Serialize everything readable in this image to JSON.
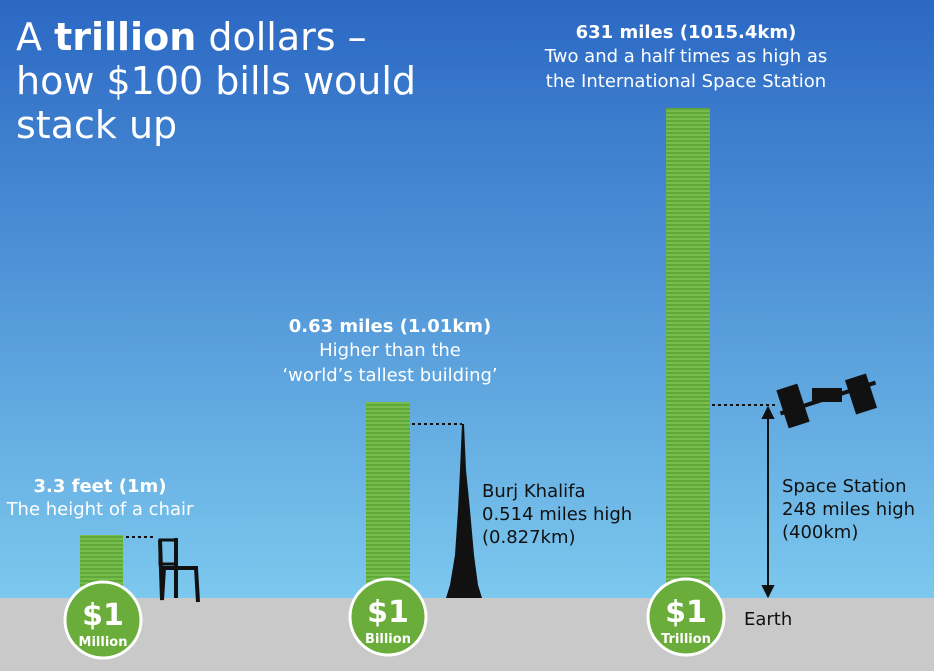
{
  "title": {
    "lines": [
      [
        "A ",
        "trillion",
        " dollars –"
      ],
      [
        "how $100 bills would"
      ],
      [
        "stack up"
      ]
    ]
  },
  "stacks": [
    {
      "height": "3.3 feet (1m)",
      "caption": [
        "The height of a chair"
      ],
      "amount": "$1",
      "unit": "Million"
    },
    {
      "height": "0.63 miles (1.01km)",
      "caption": [
        "Higher than the",
        "‘world’s tallest building’"
      ],
      "amount": "$1",
      "unit": "Billion"
    },
    {
      "height": "631 miles (1015.4km)",
      "caption": [
        "Two and a half times as high as",
        "the International Space Station"
      ],
      "amount": "$1",
      "unit": "Trillion"
    }
  ],
  "references": [
    {
      "lines": [
        "Burj Khalifa",
        "0.514 miles high",
        "(0.827km)"
      ]
    },
    {
      "lines": [
        "Space Station",
        "248 miles high",
        "(400km)"
      ]
    }
  ],
  "ground": "Earth"
}
